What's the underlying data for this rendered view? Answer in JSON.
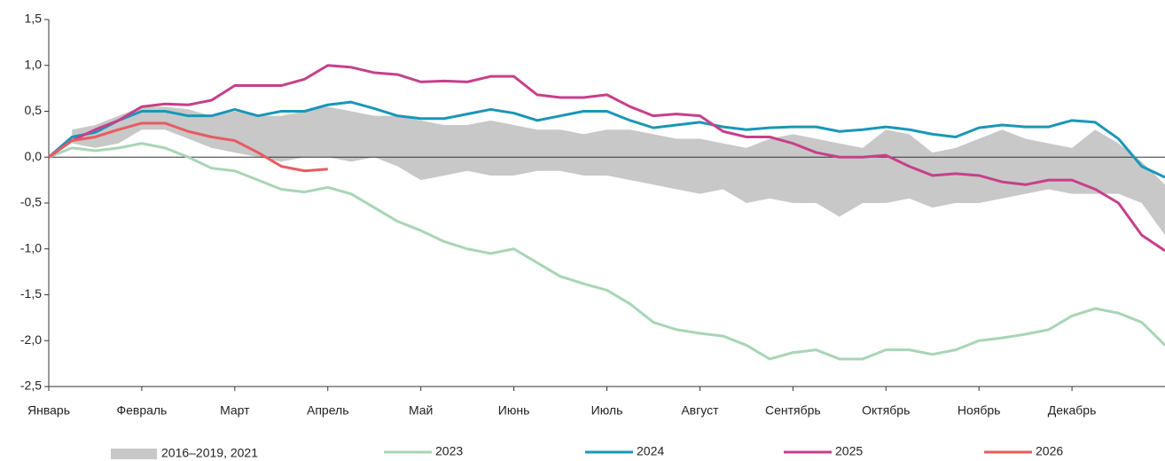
{
  "chart_data": {
    "type": "line",
    "categories": [
      "Январь",
      null,
      null,
      null,
      "Февраль",
      null,
      null,
      null,
      "Март",
      null,
      null,
      null,
      "Апрель",
      null,
      null,
      null,
      "Май",
      null,
      null,
      null,
      "Июнь",
      null,
      null,
      null,
      "Июль",
      null,
      null,
      null,
      "Август",
      null,
      null,
      null,
      "Сентябрь",
      null,
      null,
      null,
      "Октябрь",
      null,
      null,
      null,
      "Ноябрь",
      null,
      null,
      null,
      "Декабрь",
      null,
      null,
      null,
      null
    ],
    "ylim": [
      -2.5,
      1.5
    ],
    "yticks": [
      {
        "value": -2.5,
        "label": "-2,5"
      },
      {
        "value": -2,
        "label": "-2,0"
      },
      {
        "value": -1.5,
        "label": "-1,5"
      },
      {
        "value": -1,
        "label": "-1,0"
      },
      {
        "value": -0.5,
        "label": "-0,5"
      },
      {
        "value": 0,
        "label": "0,0"
      },
      {
        "value": 0.5,
        "label": "0,5"
      },
      {
        "value": 1,
        "label": "1,0"
      },
      {
        "value": 1.5,
        "label": "1,5"
      }
    ],
    "band": {
      "name": "2016–2019, 2021",
      "color": "#c8c8c8",
      "low": [
        null,
        0.15,
        0.1,
        0.15,
        0.3,
        0.3,
        0.2,
        0.1,
        0.05,
        0.0,
        -0.05,
        0.0,
        0.0,
        -0.05,
        0.0,
        -0.1,
        -0.25,
        -0.2,
        -0.15,
        -0.2,
        -0.2,
        -0.15,
        -0.15,
        -0.2,
        -0.2,
        -0.25,
        -0.3,
        -0.35,
        -0.4,
        -0.35,
        -0.5,
        -0.45,
        -0.5,
        -0.5,
        -0.65,
        -0.5,
        -0.5,
        -0.45,
        -0.55,
        -0.5,
        -0.5,
        -0.45,
        -0.4,
        -0.35,
        -0.4,
        -0.4,
        -0.4,
        -0.5,
        -0.85
      ],
      "high": [
        null,
        0.3,
        0.35,
        0.45,
        0.55,
        0.55,
        0.52,
        0.45,
        0.5,
        0.45,
        0.45,
        0.5,
        0.55,
        0.5,
        0.45,
        0.45,
        0.4,
        0.35,
        0.35,
        0.4,
        0.35,
        0.3,
        0.3,
        0.25,
        0.3,
        0.3,
        0.25,
        0.2,
        0.2,
        0.15,
        0.1,
        0.2,
        0.25,
        0.2,
        0.15,
        0.1,
        0.3,
        0.25,
        0.05,
        0.1,
        0.2,
        0.3,
        0.2,
        0.15,
        0.1,
        0.3,
        0.15,
        -0.05,
        -0.3
      ]
    },
    "series": [
      {
        "name": "2023",
        "color": "#a8d5b5",
        "values": [
          0,
          0.1,
          0.07,
          0.1,
          0.15,
          0.1,
          0.0,
          -0.12,
          -0.15,
          -0.25,
          -0.35,
          -0.38,
          -0.33,
          -0.4,
          -0.55,
          -0.7,
          -0.8,
          -0.92,
          -1.0,
          -1.05,
          -1.0,
          -1.15,
          -1.3,
          -1.38,
          -1.45,
          -1.6,
          -1.8,
          -1.88,
          -1.92,
          -1.95,
          -2.05,
          -2.2,
          -2.13,
          -2.1,
          -2.2,
          -2.2,
          -2.1,
          -2.1,
          -2.15,
          -2.1,
          -2.0,
          -1.97,
          -1.93,
          -1.88,
          -1.73,
          -1.65,
          -1.7,
          -1.8,
          -2.05
        ]
      },
      {
        "name": "2024",
        "color": "#1a96b8",
        "values": [
          0,
          0.22,
          0.27,
          0.4,
          0.5,
          0.5,
          0.45,
          0.45,
          0.52,
          0.45,
          0.5,
          0.5,
          0.57,
          0.6,
          0.53,
          0.45,
          0.42,
          0.42,
          0.47,
          0.52,
          0.48,
          0.4,
          0.45,
          0.5,
          0.5,
          0.4,
          0.32,
          0.35,
          0.38,
          0.33,
          0.3,
          0.32,
          0.33,
          0.33,
          0.28,
          0.3,
          0.33,
          0.3,
          0.25,
          0.22,
          0.32,
          0.35,
          0.33,
          0.33,
          0.4,
          0.38,
          0.2,
          -0.1,
          -0.22
        ]
      },
      {
        "name": "2025",
        "color": "#c6408a",
        "values": [
          0,
          0.18,
          0.3,
          0.4,
          0.55,
          0.58,
          0.57,
          0.62,
          0.78,
          0.78,
          0.78,
          0.85,
          1.0,
          0.98,
          0.92,
          0.9,
          0.82,
          0.83,
          0.82,
          0.88,
          0.88,
          0.68,
          0.65,
          0.65,
          0.68,
          0.55,
          0.45,
          0.47,
          0.45,
          0.28,
          0.22,
          0.22,
          0.15,
          0.05,
          0.0,
          0.0,
          0.02,
          -0.1,
          -0.2,
          -0.18,
          -0.2,
          -0.27,
          -0.3,
          -0.25,
          -0.25,
          -0.35,
          -0.5,
          -0.85,
          -1.02
        ]
      },
      {
        "name": "2026",
        "color": "#e85b62",
        "values": [
          0,
          0.18,
          0.22,
          0.3,
          0.37,
          0.37,
          0.28,
          0.22,
          0.18,
          0.05,
          -0.1,
          -0.15,
          -0.13,
          null,
          null,
          null,
          null,
          null,
          null,
          null,
          null,
          null,
          null,
          null,
          null,
          null,
          null,
          null,
          null,
          null,
          null,
          null,
          null,
          null,
          null,
          null,
          null,
          null,
          null,
          null,
          null,
          null,
          null,
          null,
          null,
          null,
          null,
          null,
          null
        ]
      }
    ]
  }
}
